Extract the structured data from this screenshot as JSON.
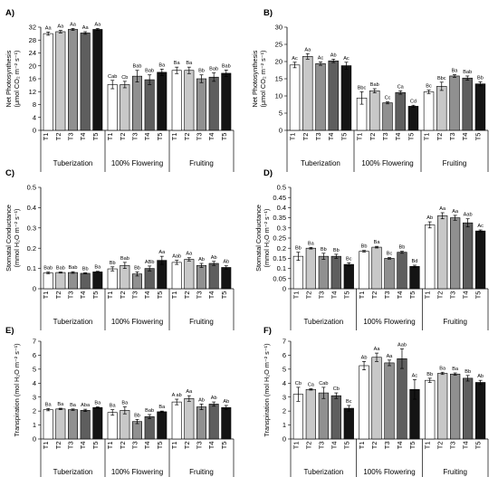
{
  "colors": {
    "T1": "#ffffff",
    "T2": "#c8c8c8",
    "T3": "#909090",
    "T4": "#5e5e5e",
    "T5": "#141414"
  },
  "treatments": [
    "T1",
    "T2",
    "T3",
    "T4",
    "T5"
  ],
  "stages": [
    "Tuberization",
    "100% Flowering",
    "Fruiting"
  ],
  "chart_data": [
    {
      "type": "bar",
      "panel": "A)",
      "ylabel": [
        "Net Photosynthesis",
        "(μmol CO₂ m⁻² s⁻¹)"
      ],
      "ylim": [
        0,
        32
      ],
      "yticks": [
        0,
        4,
        8,
        12,
        16,
        20,
        24,
        28,
        32
      ],
      "ytick_labels": [
        "0",
        "4",
        "8",
        "12",
        "16",
        "20",
        "24",
        "28",
        "32"
      ],
      "series": [
        {
          "values": [
            30.0,
            30.6,
            31.3,
            30.2,
            31.3
          ],
          "errors": [
            0.5,
            0.4,
            0.3,
            0.4,
            0.3
          ],
          "labels": [
            "Aa",
            "Aa",
            "Aa",
            "Aa",
            "Aa"
          ]
        },
        {
          "values": [
            14.2,
            14.2,
            16.8,
            15.7,
            18.0
          ],
          "errors": [
            1.3,
            1.0,
            1.8,
            1.5,
            1.0
          ],
          "labels": [
            "Cab",
            "Cb",
            "Bab",
            "Bab",
            "Ba"
          ]
        },
        {
          "values": [
            18.6,
            18.6,
            16.0,
            16.5,
            17.7
          ],
          "errors": [
            1.0,
            1.0,
            1.2,
            1.3,
            1.0
          ],
          "labels": [
            "Ba",
            "Ba",
            "Bb",
            "Bab",
            "Bab"
          ]
        }
      ]
    },
    {
      "type": "bar",
      "panel": "B)",
      "ylabel": [
        "Net Photosynthesis",
        "(μmol CO₂ m⁻² s⁻¹)"
      ],
      "ylim": [
        0,
        30
      ],
      "yticks": [
        0,
        5,
        10,
        15,
        20,
        25,
        30
      ],
      "ytick_labels": [
        "0",
        "5",
        "10",
        "15",
        "20",
        "25",
        "30"
      ],
      "series": [
        {
          "values": [
            19.0,
            21.5,
            19.4,
            20.2,
            18.8
          ],
          "errors": [
            0.8,
            0.8,
            0.5,
            0.5,
            1.0
          ],
          "labels": [
            "Ac",
            "Aa",
            "Ac",
            "Ab",
            "Ac"
          ]
        },
        {
          "values": [
            9.4,
            11.5,
            8.0,
            11.0,
            7.0
          ],
          "errors": [
            1.8,
            0.6,
            0.3,
            0.5,
            0.3
          ],
          "labels": [
            "Bbc",
            "Bab",
            "Cc",
            "Ca",
            "Cd"
          ]
        },
        {
          "values": [
            11.2,
            12.8,
            15.8,
            15.2,
            13.5
          ],
          "errors": [
            0.5,
            1.2,
            0.4,
            0.6,
            0.6
          ],
          "labels": [
            "Bc",
            "Bbc",
            "Ba",
            "Bab",
            "Bb"
          ]
        }
      ]
    },
    {
      "type": "bar",
      "panel": "C)",
      "ylabel": [
        "Stomatal Conductance",
        "(mmol H₂O m⁻² s⁻¹)"
      ],
      "ylim": [
        0,
        0.5
      ],
      "yticks": [
        0,
        0.1,
        0.2,
        0.3,
        0.4,
        0.5
      ],
      "ytick_labels": [
        "0",
        "0.1",
        "0.2",
        "0.3",
        "0.4",
        "0.5"
      ],
      "series": [
        {
          "values": [
            0.078,
            0.08,
            0.08,
            0.076,
            0.083
          ],
          "errors": [
            0.004,
            0.003,
            0.004,
            0.003,
            0.003
          ],
          "labels": [
            "Bab",
            "Bab",
            "Bab",
            "Bb",
            "Ba"
          ]
        },
        {
          "values": [
            0.098,
            0.115,
            0.073,
            0.1,
            0.14
          ],
          "errors": [
            0.01,
            0.015,
            0.01,
            0.012,
            0.02
          ],
          "labels": [
            "Bb",
            "Bab",
            "Bb",
            "ABb",
            "Aa"
          ]
        },
        {
          "values": [
            0.13,
            0.145,
            0.115,
            0.125,
            0.105
          ],
          "errors": [
            0.01,
            0.008,
            0.01,
            0.01,
            0.008
          ],
          "labels": [
            "Aab",
            "Aa",
            "Ab",
            "Ab",
            "Ab"
          ]
        }
      ]
    },
    {
      "type": "bar",
      "panel": "D)",
      "ylabel": [
        "Stomatal Conductance",
        "(mmol H₂O m⁻² s⁻¹)"
      ],
      "ylim": [
        0,
        0.5
      ],
      "yticks": [
        0,
        0.05,
        0.1,
        0.15,
        0.2,
        0.25,
        0.3,
        0.35,
        0.4,
        0.45,
        0.5
      ],
      "ytick_labels": [
        "0",
        "0.05",
        "0.1",
        "0.15",
        "0.2",
        "0.25",
        "0.3",
        "0.35",
        "0.4",
        "0.45",
        "0.5"
      ],
      "series": [
        {
          "values": [
            0.16,
            0.2,
            0.16,
            0.16,
            0.12
          ],
          "errors": [
            0.02,
            0.004,
            0.015,
            0.01,
            0.008
          ],
          "labels": [
            "Bb",
            "Ba",
            "Bb",
            "Bb",
            "Bc"
          ]
        },
        {
          "values": [
            0.185,
            0.205,
            0.15,
            0.18,
            0.11
          ],
          "errors": [
            0.004,
            0.004,
            0.004,
            0.005,
            0.006
          ],
          "labels": [
            "Bb",
            "Ba",
            "Bc",
            "Bb",
            "Bd"
          ]
        },
        {
          "values": [
            0.315,
            0.36,
            0.35,
            0.325,
            0.285
          ],
          "errors": [
            0.015,
            0.015,
            0.012,
            0.02,
            0.005
          ],
          "labels": [
            "Ab",
            "Aa",
            "Aa",
            "Aab",
            "Ac"
          ]
        }
      ]
    },
    {
      "type": "bar",
      "panel": "E)",
      "ylabel": [
        "Transpiration  (mol  H₂O m⁻² s⁻¹)"
      ],
      "ylim": [
        0,
        7
      ],
      "yticks": [
        0,
        1,
        2,
        3,
        4,
        5,
        6,
        7
      ],
      "ytick_labels": [
        "0",
        "1",
        "2",
        "3",
        "4",
        "5",
        "6",
        "7"
      ],
      "series": [
        {
          "values": [
            2.1,
            2.15,
            2.1,
            2.05,
            2.25
          ],
          "errors": [
            0.08,
            0.05,
            0.05,
            0.08,
            0.05
          ],
          "labels": [
            "Ba",
            "Ba",
            "Ba",
            "Aba",
            "Ba"
          ]
        },
        {
          "values": [
            1.9,
            2.05,
            1.25,
            1.6,
            1.95
          ],
          "errors": [
            0.2,
            0.25,
            0.15,
            0.15,
            0.05
          ],
          "labels": [
            "Ba",
            "Ba",
            "Bb",
            "Bab",
            "Ba"
          ]
        },
        {
          "values": [
            2.65,
            2.9,
            2.3,
            2.5,
            2.25
          ],
          "errors": [
            0.2,
            0.2,
            0.2,
            0.15,
            0.15
          ],
          "labels": [
            "A ab",
            "Aa",
            "Ab",
            "Ab",
            "Ab"
          ]
        }
      ]
    },
    {
      "type": "bar",
      "panel": "F)",
      "ylabel": [
        "Transpiration  (mol H₂O m⁻² s⁻¹)"
      ],
      "ylim": [
        0,
        7
      ],
      "yticks": [
        0,
        1,
        2,
        3,
        4,
        5,
        6,
        7
      ],
      "ytick_labels": [
        "0",
        "1",
        "2",
        "3",
        "4",
        "5",
        "6",
        "7"
      ],
      "series": [
        {
          "values": [
            3.2,
            3.55,
            3.3,
            3.1,
            2.2
          ],
          "errors": [
            0.5,
            0.05,
            0.4,
            0.2,
            0.2
          ],
          "labels": [
            "Cb",
            "Ca",
            "Cab",
            "Cb",
            "Bc"
          ]
        },
        {
          "values": [
            5.25,
            5.85,
            5.45,
            5.75,
            3.55
          ],
          "errors": [
            0.3,
            0.3,
            0.2,
            0.7,
            0.7
          ],
          "labels": [
            "Ab",
            "Aa",
            "Aa",
            "Aab",
            "Ac"
          ]
        },
        {
          "values": [
            4.2,
            4.7,
            4.65,
            4.35,
            4.05
          ],
          "errors": [
            0.15,
            0.08,
            0.08,
            0.2,
            0.15
          ],
          "labels": [
            "Bb",
            "Ba",
            "Ba",
            "Bb",
            "Ab"
          ]
        }
      ]
    }
  ]
}
